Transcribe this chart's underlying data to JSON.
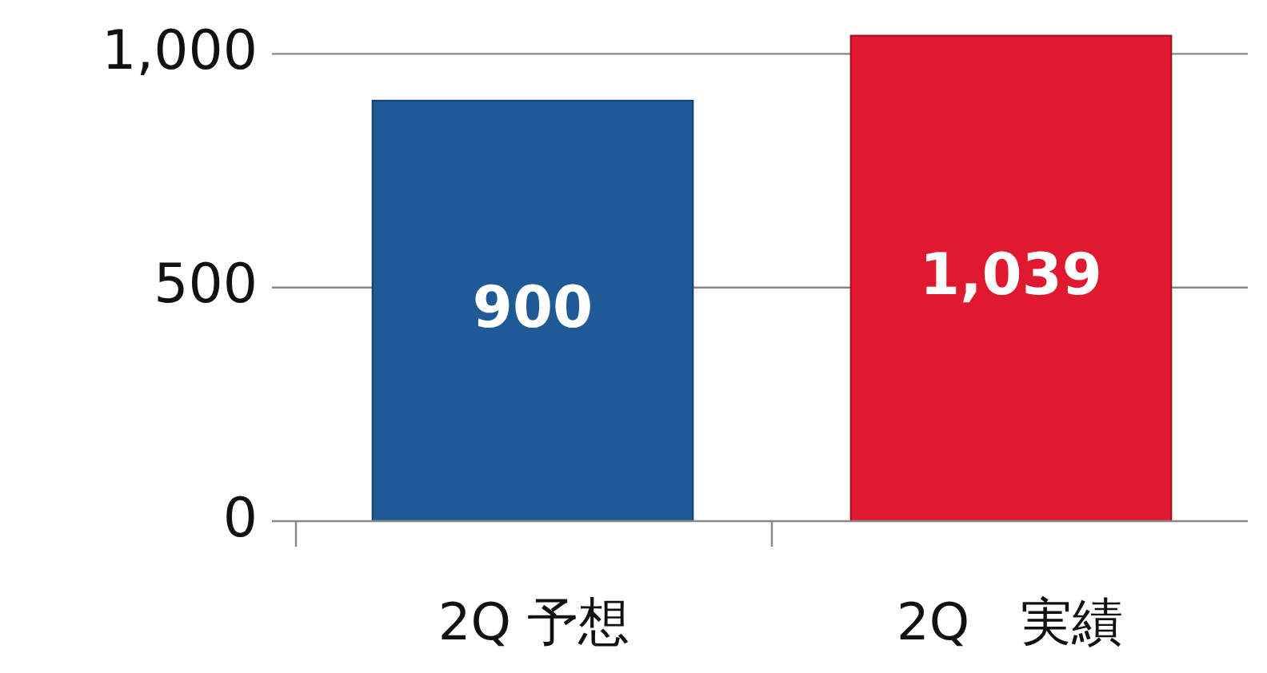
{
  "chart_data": {
    "type": "bar",
    "categories": [
      "2Q 予想",
      "2Q　実績"
    ],
    "values": [
      900,
      1039
    ],
    "colors": [
      "#1f5a96",
      "#e0192e"
    ],
    "ylim": [
      0,
      1040
    ],
    "yticks": [
      0,
      500,
      {
        "value": 1000,
        "label": "1,000"
      }
    ],
    "grid": "y",
    "data_labels": true,
    "value_labels": [
      "900",
      "1,039"
    ]
  }
}
